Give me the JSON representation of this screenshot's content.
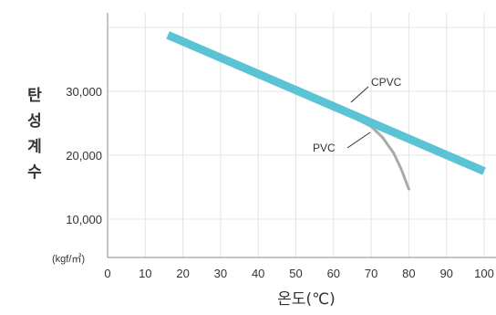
{
  "chart_data": {
    "type": "line",
    "xlabel": "온도(℃)",
    "ylabel": "탄성계수",
    "yunit": "(kgf/㎡)",
    "xlim": [
      0,
      100
    ],
    "ylim": [
      5000,
      40000
    ],
    "x_ticks": [
      "0",
      "10",
      "20",
      "30",
      "40",
      "50",
      "60",
      "70",
      "80",
      "90",
      "100"
    ],
    "y_ticks": [
      {
        "value": 10000,
        "label": "10,000"
      },
      {
        "value": 20000,
        "label": "20,000"
      },
      {
        "value": 30000,
        "label": "30,000"
      }
    ],
    "grid": true,
    "series": [
      {
        "name": "CPVC",
        "color": "#5bc3d6",
        "x": [
          16,
          100
        ],
        "y": [
          38800,
          17500
        ]
      },
      {
        "name": "PVC",
        "color": "#aaaaaa",
        "x": [
          65,
          70,
          73,
          76,
          78,
          80
        ],
        "y": [
          26000,
          24500,
          22800,
          20300,
          17800,
          14700
        ]
      }
    ],
    "annotations": [
      {
        "text": "CPVC",
        "series": "CPVC"
      },
      {
        "text": "PVC",
        "series": "PVC"
      }
    ]
  }
}
